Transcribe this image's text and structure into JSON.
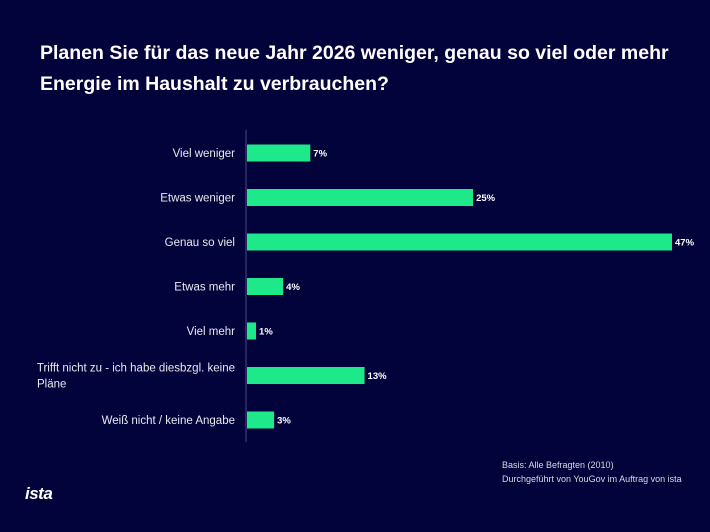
{
  "chart_data": {
    "type": "bar",
    "orientation": "horizontal",
    "title": "Planen Sie für das neue Jahr 2026 weniger, genau so viel oder mehr Energie im Haushalt zu verbrauchen?",
    "categories": [
      "Viel weniger",
      "Etwas weniger",
      "Genau so viel",
      "Etwas mehr",
      "Viel mehr",
      "Trifft nicht zu - ich habe diesbzgl. keine Pläne",
      "Weiß nicht / keine Angabe"
    ],
    "category_lines": [
      [
        "Viel weniger"
      ],
      [
        "Etwas weniger"
      ],
      [
        "Genau so viel"
      ],
      [
        "Etwas mehr"
      ],
      [
        "Viel mehr"
      ],
      [
        "Trifft nicht zu - ich habe diesbzgl. keine",
        "Pläne"
      ],
      [
        "Weiß nicht / keine Angabe"
      ]
    ],
    "values": [
      7,
      25,
      47,
      4,
      1,
      13,
      3
    ],
    "data_labels": [
      "7%",
      "25%",
      "47%",
      "4%",
      "1%",
      "13%",
      "3%"
    ],
    "unit": "%",
    "xlim": [
      0,
      47
    ],
    "grid": false,
    "bar_color": "#1de98b",
    "background": "#03033b"
  },
  "footer": {
    "basis": "Basis: Alle Befragten (2010)",
    "source": "Durchgeführt von YouGov im Auftrag von ista"
  },
  "logo": "ista"
}
